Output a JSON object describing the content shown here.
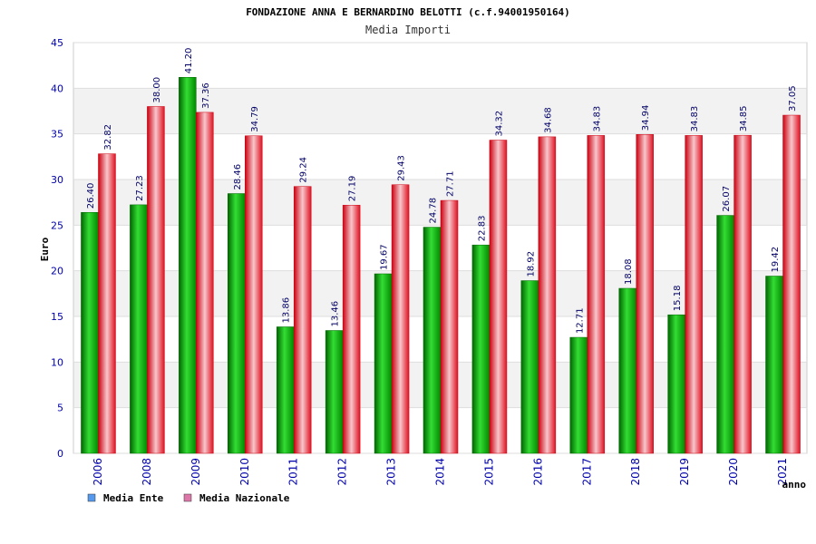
{
  "chart_data": {
    "type": "bar",
    "title": "FONDAZIONE ANNA E BERNARDINO BELOTTI (c.f.94001950164)",
    "subtitle": "Media Importi",
    "xlabel": "anno",
    "ylabel": "Euro",
    "ylim": [
      0,
      45
    ],
    "yticks": [
      0,
      5,
      10,
      15,
      20,
      25,
      30,
      35,
      40,
      45
    ],
    "grid": true,
    "legend_position": "bottom-left",
    "categories": [
      "2006",
      "2008",
      "2009",
      "2010",
      "2011",
      "2012",
      "2013",
      "2014",
      "2015",
      "2016",
      "2017",
      "2018",
      "2019",
      "2020",
      "2021"
    ],
    "series": [
      {
        "name": "Media Ente",
        "color": "#00aa00",
        "legend_color": "#5599ee",
        "values": [
          26.4,
          27.23,
          41.2,
          28.46,
          13.86,
          13.46,
          19.67,
          24.78,
          22.83,
          18.92,
          12.71,
          18.08,
          15.18,
          26.07,
          19.42
        ],
        "labels": [
          "26.40",
          "27.23",
          "41.20",
          "28.46",
          "13.86",
          "13.46",
          "19.67",
          "24.78",
          "22.83",
          "18.92",
          "12.71",
          "18.08",
          "15.18",
          "26.07",
          "19.42"
        ]
      },
      {
        "name": "Media Nazionale",
        "color": "#e8202a",
        "legend_color": "#dd77aa",
        "values": [
          32.82,
          38.0,
          37.36,
          34.79,
          29.24,
          27.19,
          29.43,
          27.71,
          34.32,
          34.68,
          34.83,
          34.94,
          34.83,
          34.85,
          37.05
        ],
        "labels": [
          "32.82",
          "38.00",
          "37.36",
          "34.79",
          "29.24",
          "27.19",
          "29.43",
          "27.71",
          "34.32",
          "34.68",
          "34.83",
          "34.94",
          "34.83",
          "34.85",
          "37.05"
        ]
      }
    ]
  }
}
